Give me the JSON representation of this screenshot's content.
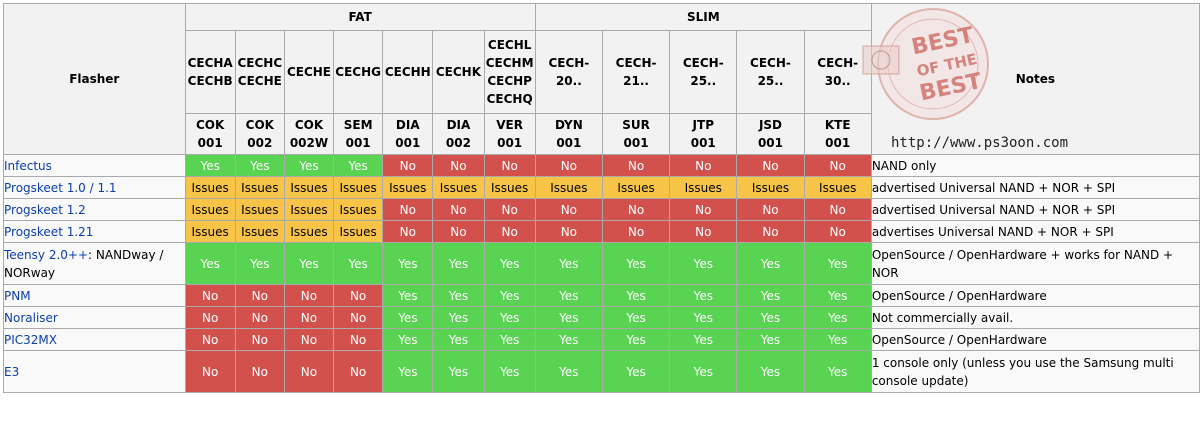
{
  "header": {
    "flasher_label": "Flasher",
    "notes_label": "Notes",
    "groups": [
      {
        "label": "FAT",
        "span": 7
      },
      {
        "label": "SLIM",
        "span": 5
      }
    ],
    "models": [
      "CECHA\nCECHB",
      "CECHC\nCECHE",
      "CECHE",
      "CECHG",
      "CECHH",
      "CECHK",
      "CECHL\nCECHM\nCECHP\nCECHQ",
      "CECH-20..",
      "CECH-21..",
      "CECH-25..",
      "CECH-25..",
      "CECH-30.."
    ],
    "codes": [
      "COK\n001",
      "COK\n002",
      "COK\n002W",
      "SEM\n001",
      "DIA\n001",
      "DIA\n002",
      "VER\n001",
      "DYN\n001",
      "SUR\n001",
      "JTP\n001",
      "JSD\n001",
      "KTE\n001"
    ]
  },
  "colors": {
    "yes": "#59d352",
    "no": "#d2514d",
    "issues": "#f8c448",
    "link": "#0b3fa8"
  },
  "rows": [
    {
      "flasher": "Infectus",
      "link": true,
      "tall": false,
      "cells": [
        "Yes",
        "Yes",
        "Yes",
        "Yes",
        "No",
        "No",
        "No",
        "No",
        "No",
        "No",
        "No",
        "No"
      ],
      "notes": "NAND only"
    },
    {
      "flasher": "Progskeet 1.0 / 1.1",
      "link": true,
      "tall": false,
      "cells": [
        "Issues",
        "Issues",
        "Issues",
        "Issues",
        "Issues",
        "Issues",
        "Issues",
        "Issues",
        "Issues",
        "Issues",
        "Issues",
        "Issues"
      ],
      "notes": "advertised Universal NAND + NOR + SPI"
    },
    {
      "flasher": "Progskeet 1.2",
      "link": true,
      "tall": false,
      "cells": [
        "Issues",
        "Issues",
        "Issues",
        "Issues",
        "No",
        "No",
        "No",
        "No",
        "No",
        "No",
        "No",
        "No"
      ],
      "notes": "advertised Universal NAND + NOR + SPI"
    },
    {
      "flasher": "Progskeet 1.21",
      "link": true,
      "tall": false,
      "cells": [
        "Issues",
        "Issues",
        "Issues",
        "Issues",
        "No",
        "No",
        "No",
        "No",
        "No",
        "No",
        "No",
        "No"
      ],
      "notes": "advertises Universal NAND + NOR + SPI"
    },
    {
      "flasher": "Teensy 2.0++",
      "flasher_suffix": ": NANDway / NORway",
      "link": true,
      "tall": true,
      "cells": [
        "Yes",
        "Yes",
        "Yes",
        "Yes",
        "Yes",
        "Yes",
        "Yes",
        "Yes",
        "Yes",
        "Yes",
        "Yes",
        "Yes"
      ],
      "notes": "OpenSource / OpenHardware + works for NAND + NOR"
    },
    {
      "flasher": "PNM",
      "link": true,
      "tall": false,
      "cells": [
        "No",
        "No",
        "No",
        "No",
        "Yes",
        "Yes",
        "Yes",
        "Yes",
        "Yes",
        "Yes",
        "Yes",
        "Yes"
      ],
      "notes": "OpenSource / OpenHardware"
    },
    {
      "flasher": "Noraliser",
      "link": true,
      "tall": false,
      "cells": [
        "No",
        "No",
        "No",
        "No",
        "Yes",
        "Yes",
        "Yes",
        "Yes",
        "Yes",
        "Yes",
        "Yes",
        "Yes"
      ],
      "notes": "Not commercially avail."
    },
    {
      "flasher": "PIC32MX",
      "link": true,
      "tall": false,
      "cells": [
        "No",
        "No",
        "No",
        "No",
        "Yes",
        "Yes",
        "Yes",
        "Yes",
        "Yes",
        "Yes",
        "Yes",
        "Yes"
      ],
      "notes": "OpenSource / OpenHardware"
    },
    {
      "flasher": "E3",
      "link": true,
      "tall": true,
      "cells": [
        "No",
        "No",
        "No",
        "No",
        "Yes",
        "Yes",
        "Yes",
        "Yes",
        "Yes",
        "Yes",
        "Yes",
        "Yes"
      ],
      "notes": "1 console only (unless you use the Samsung multi console update)"
    }
  ],
  "watermark": {
    "badge_text_1": "BEST",
    "badge_text_2": "OF THE",
    "badge_text_3": "BEST",
    "ring_text": "BEST OF THE BEST",
    "stamp_text": "PS3OON",
    "url": "http://www.ps3oon.com"
  }
}
